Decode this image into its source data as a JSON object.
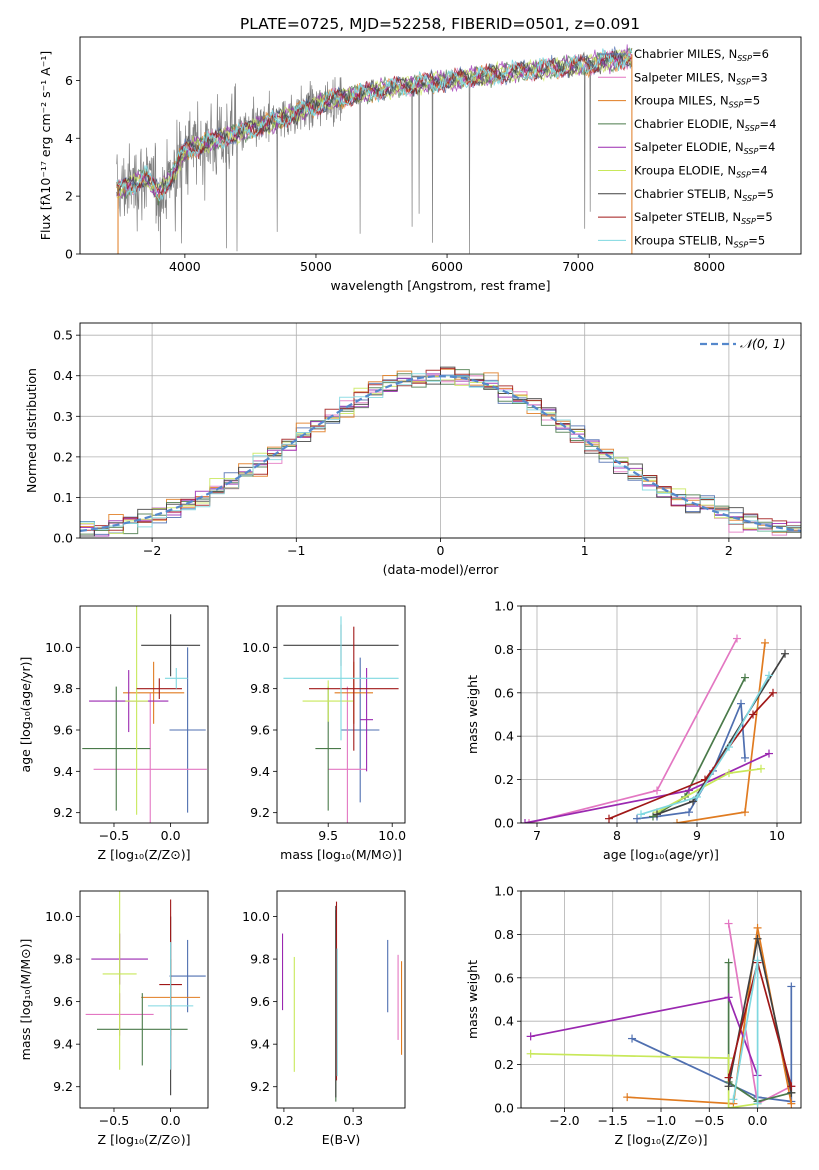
{
  "title": "PLATE=0725, MJD=52258, FIBERID=0501, z=0.091",
  "models": [
    {
      "name": "Chabrier MILES",
      "nssp": "6",
      "color": "#4f6fb0"
    },
    {
      "name": "Salpeter MILES",
      "nssp": "3",
      "color": "#e377c2"
    },
    {
      "name": "Kroupa MILES",
      "nssp": "5",
      "color": "#e07b20"
    },
    {
      "name": "Chabrier ELODIE",
      "nssp": "4",
      "color": "#4a7a4a"
    },
    {
      "name": "Salpeter ELODIE",
      "nssp": "4",
      "color": "#9a28b0"
    },
    {
      "name": "Kroupa ELODIE",
      "nssp": "4",
      "color": "#c8e85a"
    },
    {
      "name": "Chabrier STELIB",
      "nssp": "5",
      "color": "#404040"
    },
    {
      "name": "Salpeter STELIB",
      "nssp": "5",
      "color": "#a01818"
    },
    {
      "name": "Kroupa STELIB",
      "nssp": "5",
      "color": "#7fd8e0"
    }
  ],
  "chart_data": [
    {
      "id": "spectrum",
      "type": "line",
      "xlabel": "wavelength [Angstrom, rest frame]",
      "ylabel": "Flux [fλ10⁻¹⁷ erg cm⁻² s⁻¹ A⁻¹]",
      "xlim": [
        3200,
        8700
      ],
      "ylim": [
        0,
        7.5
      ],
      "xticks": [
        4000,
        5000,
        6000,
        7000,
        8000
      ],
      "yticks": [
        0,
        2,
        4,
        6
      ],
      "legend": "right",
      "observed_color": "#808080",
      "continuum": {
        "x": [
          3480,
          3600,
          3700,
          3800,
          3900,
          4000,
          4200,
          4500,
          4800,
          5100,
          5500,
          6000,
          6500,
          7000,
          7400
        ],
        "y": [
          2.2,
          2.4,
          2.7,
          2.1,
          2.7,
          3.6,
          3.9,
          4.3,
          4.8,
          5.3,
          5.7,
          6.0,
          6.3,
          6.5,
          6.8
        ]
      }
    },
    {
      "id": "residuals",
      "type": "histogram",
      "xlabel": "(data-model)/error",
      "ylabel": "Normed distribution",
      "xlim": [
        -2.5,
        2.5
      ],
      "ylim": [
        0,
        0.53
      ],
      "xticks": [
        -2,
        -1,
        0,
        1,
        2
      ],
      "yticks": [
        0,
        0.1,
        0.2,
        0.3,
        0.4,
        0.5
      ],
      "grid": true,
      "legend": "top-right",
      "reference_label": "𝒩(0, 1)",
      "reference_color": "#5588cc",
      "bin_width": 0.1
    },
    {
      "id": "age-vs-Z",
      "type": "errorbar",
      "xlabel": "Z [log₁₀(Z/Z⊙)]",
      "ylabel": "age  [log₁₀(age/yr)]",
      "xlim": [
        -0.8,
        0.33
      ],
      "ylim": [
        9.15,
        10.2
      ],
      "xticks": [
        -0.5,
        0.0
      ],
      "yticks": [
        9.2,
        9.4,
        9.6,
        9.8,
        10.0
      ],
      "points": [
        {
          "x": 0.15,
          "y": 9.6,
          "xerr": 0.16,
          "yerr": 0.4,
          "c": 0
        },
        {
          "x": -0.18,
          "y": 9.41,
          "xerr": 0.5,
          "yerr": 0.37,
          "c": 1
        },
        {
          "x": -0.15,
          "y": 9.78,
          "xerr": 0.27,
          "yerr": 0.15,
          "c": 2
        },
        {
          "x": -0.48,
          "y": 9.51,
          "xerr": 0.3,
          "yerr": 0.3,
          "c": 3
        },
        {
          "x": -0.37,
          "y": 9.74,
          "xerr": 0.35,
          "yerr": 0.15,
          "c": 4
        },
        {
          "x": -0.3,
          "y": 9.74,
          "xerr": 0.1,
          "yerr": 0.55,
          "c": 5
        },
        {
          "x": 0.0,
          "y": 10.01,
          "xerr": 0.26,
          "yerr": 0.15,
          "c": 6
        },
        {
          "x": -0.1,
          "y": 9.8,
          "xerr": 0.2,
          "yerr": 0.05,
          "c": 7
        },
        {
          "x": 0.05,
          "y": 9.85,
          "xerr": 0.1,
          "yerr": 0.05,
          "c": 8
        }
      ]
    },
    {
      "id": "age-vs-mass",
      "type": "errorbar",
      "xlabel": "mass [log₁₀(M/M⊙)]",
      "ylabel": "",
      "xlim": [
        9.1,
        10.1
      ],
      "ylim": [
        9.15,
        10.2
      ],
      "xticks": [
        9.5,
        10.0
      ],
      "yticks": [
        9.2,
        9.4,
        9.6,
        9.8,
        10.0
      ],
      "points": [
        {
          "x": 9.75,
          "y": 9.6,
          "xerr": 0.15,
          "yerr": 0.35,
          "c": 0
        },
        {
          "x": 9.65,
          "y": 9.41,
          "xerr": 0.15,
          "yerr": 0.4,
          "c": 1
        },
        {
          "x": 9.7,
          "y": 9.78,
          "xerr": 0.15,
          "yerr": 0.15,
          "c": 2
        },
        {
          "x": 9.5,
          "y": 9.51,
          "xerr": 0.1,
          "yerr": 0.3,
          "c": 3
        },
        {
          "x": 9.8,
          "y": 9.65,
          "xerr": 0.05,
          "yerr": 0.25,
          "c": 4
        },
        {
          "x": 9.5,
          "y": 9.74,
          "xerr": 0.2,
          "yerr": 0.1,
          "c": 5
        },
        {
          "x": 9.6,
          "y": 10.01,
          "xerr": 0.45,
          "yerr": 0.1,
          "c": 6
        },
        {
          "x": 9.7,
          "y": 9.8,
          "xerr": 0.35,
          "yerr": 0.3,
          "c": 7
        },
        {
          "x": 9.6,
          "y": 9.85,
          "xerr": 0.45,
          "yerr": 0.3,
          "c": 8
        }
      ]
    },
    {
      "id": "weight-vs-age",
      "type": "line",
      "xlabel": "age  [log₁₀(age/yr)]",
      "ylabel": "mass weight",
      "xlim": [
        6.8,
        10.3
      ],
      "ylim": [
        0,
        1
      ],
      "xticks": [
        7,
        8,
        9,
        10
      ],
      "yticks": [
        0,
        0.2,
        0.4,
        0.6,
        0.8,
        1.0
      ],
      "grid": true,
      "series": [
        {
          "c": 0,
          "x": [
            8.25,
            8.5,
            8.9,
            9.2,
            9.55,
            9.6
          ],
          "y": [
            0.02,
            0.03,
            0.05,
            0.24,
            0.55,
            0.3
          ]
        },
        {
          "c": 1,
          "x": [
            6.9,
            8.5,
            9.5
          ],
          "y": [
            0.0,
            0.15,
            0.85
          ]
        },
        {
          "c": 2,
          "x": [
            8.75,
            9.6,
            9.85
          ],
          "y": [
            0.0,
            0.05,
            0.83
          ]
        },
        {
          "c": 3,
          "x": [
            8.45,
            8.85,
            9.6
          ],
          "y": [
            0.03,
            0.12,
            0.67
          ]
        },
        {
          "c": 4,
          "x": [
            6.85,
            8.9,
            9.9
          ],
          "y": [
            0.0,
            0.15,
            0.32
          ]
        },
        {
          "c": 5,
          "x": [
            8.5,
            9.4,
            9.8
          ],
          "y": [
            0.05,
            0.23,
            0.25
          ]
        },
        {
          "c": 6,
          "x": [
            8.5,
            8.95,
            10.1
          ],
          "y": [
            0.04,
            0.1,
            0.78
          ]
        },
        {
          "c": 7,
          "x": [
            7.9,
            9.1,
            9.7,
            9.95
          ],
          "y": [
            0.02,
            0.2,
            0.5,
            0.6
          ]
        },
        {
          "c": 8,
          "x": [
            8.3,
            9.0,
            9.4,
            9.9
          ],
          "y": [
            0.04,
            0.12,
            0.35,
            0.68
          ]
        }
      ]
    },
    {
      "id": "mass-vs-Z",
      "type": "errorbar",
      "xlabel": "Z [log₁₀(Z/Z⊙)]",
      "ylabel": "mass [log₁₀(M/M⊙)]",
      "xlim": [
        -0.8,
        0.33
      ],
      "ylim": [
        9.1,
        10.12
      ],
      "xticks": [
        -0.5,
        0.0
      ],
      "yticks": [
        9.2,
        9.4,
        9.6,
        9.8,
        10.0
      ],
      "points": [
        {
          "x": 0.15,
          "y": 9.72,
          "xerr": 0.16,
          "yerr": 0.17,
          "c": 0
        },
        {
          "x": -0.45,
          "y": 9.54,
          "xerr": 0.3,
          "yerr": 0.1,
          "c": 1
        },
        {
          "x": 0.0,
          "y": 9.62,
          "xerr": 0.26,
          "yerr": 0.18,
          "c": 2
        },
        {
          "x": -0.25,
          "y": 9.47,
          "xerr": 0.4,
          "yerr": 0.17,
          "c": 3
        },
        {
          "x": -0.45,
          "y": 9.8,
          "xerr": 0.25,
          "yerr": 0.12,
          "c": 4
        },
        {
          "x": -0.45,
          "y": 9.73,
          "xerr": 0.15,
          "yerr": 0.45,
          "c": 5
        },
        {
          "x": 0.0,
          "y": 9.58,
          "xerr": 0.01,
          "yerr": 0.42,
          "c": 6
        },
        {
          "x": 0.0,
          "y": 9.68,
          "xerr": 0.1,
          "yerr": 0.4,
          "c": 7
        },
        {
          "x": 0.0,
          "y": 9.58,
          "xerr": 0.2,
          "yerr": 0.3,
          "c": 8
        }
      ]
    },
    {
      "id": "mass-vs-EBV",
      "type": "errorbar",
      "xlabel": "E(B-V)",
      "ylabel": "",
      "xlim": [
        0.19,
        0.375
      ],
      "ylim": [
        9.1,
        10.12
      ],
      "xticks": [
        0.2,
        0.3
      ],
      "yticks": [
        9.2,
        9.4,
        9.6,
        9.8,
        10.0
      ],
      "points": [
        {
          "x": 0.35,
          "y": 9.72,
          "xerr": 0,
          "yerr": 0.17,
          "c": 0
        },
        {
          "x": 0.365,
          "y": 9.62,
          "xerr": 0,
          "yerr": 0.2,
          "c": 1
        },
        {
          "x": 0.37,
          "y": 9.57,
          "xerr": 0,
          "yerr": 0.22,
          "c": 2
        },
        {
          "x": 0.275,
          "y": 9.58,
          "xerr": 0,
          "yerr": 0.45,
          "c": 3
        },
        {
          "x": 0.198,
          "y": 9.74,
          "xerr": 0,
          "yerr": 0.18,
          "c": 4
        },
        {
          "x": 0.215,
          "y": 9.54,
          "xerr": 0,
          "yerr": 0.27,
          "c": 5
        },
        {
          "x": 0.275,
          "y": 9.6,
          "xerr": 0,
          "yerr": 0.45,
          "c": 6
        },
        {
          "x": 0.276,
          "y": 9.65,
          "xerr": 0,
          "yerr": 0.42,
          "c": 7
        },
        {
          "x": 0.277,
          "y": 9.55,
          "xerr": 0,
          "yerr": 0.3,
          "c": 8
        }
      ]
    },
    {
      "id": "weight-vs-Z",
      "type": "line",
      "xlabel": "Z [log₁₀(Z/Z⊙)]",
      "ylabel": "mass weight",
      "xlim": [
        -2.45,
        0.45
      ],
      "ylim": [
        0,
        1
      ],
      "xticks": [
        -2.0,
        -1.5,
        -1.0,
        -0.5,
        0.0
      ],
      "yticks": [
        0,
        0.2,
        0.4,
        0.6,
        0.8,
        1.0
      ],
      "grid": true,
      "series": [
        {
          "c": 0,
          "x": [
            -1.3,
            0.0,
            0.35,
            0.35
          ],
          "y": [
            0.32,
            0.05,
            0.03,
            0.56
          ]
        },
        {
          "c": 1,
          "x": [
            -0.3,
            0.0,
            0.35
          ],
          "y": [
            0.85,
            0.02,
            0.1
          ]
        },
        {
          "c": 2,
          "x": [
            -1.35,
            -0.25,
            0.0,
            0.35
          ],
          "y": [
            0.05,
            0.02,
            0.83,
            0.02
          ]
        },
        {
          "c": 3,
          "x": [
            -0.3,
            -0.3,
            0.0,
            0.35
          ],
          "y": [
            0.67,
            0.12,
            0.03,
            0.07
          ]
        },
        {
          "c": 4,
          "x": [
            -2.35,
            -0.3,
            0.0
          ],
          "y": [
            0.33,
            0.51,
            0.15
          ]
        },
        {
          "c": 5,
          "x": [
            -2.35,
            -0.3,
            -0.3,
            0.0
          ],
          "y": [
            0.25,
            0.23,
            0.0,
            0.02
          ]
        },
        {
          "c": 6,
          "x": [
            -0.3,
            0.0,
            0.35
          ],
          "y": [
            0.1,
            0.78,
            0.07
          ]
        },
        {
          "c": 7,
          "x": [
            -0.3,
            0.0,
            0.35
          ],
          "y": [
            0.14,
            0.67,
            0.1
          ]
        },
        {
          "c": 8,
          "x": [
            -0.25,
            0.0,
            0.0
          ],
          "y": [
            0.04,
            0.68,
            0.02
          ]
        }
      ]
    }
  ]
}
